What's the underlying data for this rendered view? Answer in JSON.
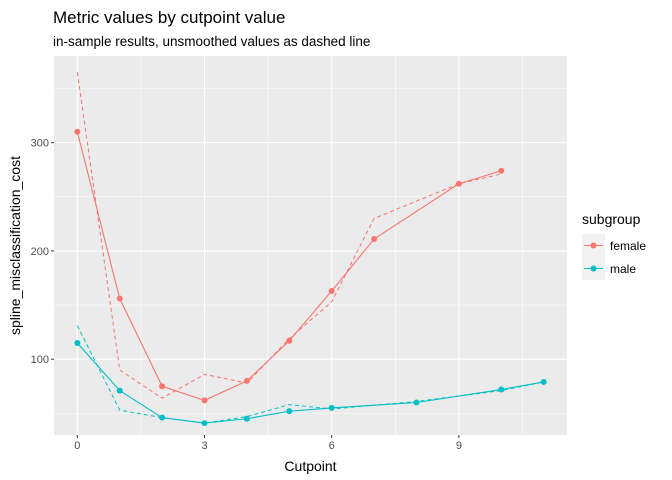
{
  "chart_data": {
    "type": "line",
    "title": "Metric values by cutpoint value",
    "subtitle": "in-sample results, unsmoothed values as dashed line",
    "xlabel": "Cutpoint",
    "ylabel": "spline_misclassification_cost",
    "xlim": [
      -0.55,
      11.55
    ],
    "ylim": [
      30,
      380
    ],
    "x_ticks": [
      0,
      3,
      6,
      9
    ],
    "y_ticks": [
      100,
      200,
      300
    ],
    "grid": true,
    "legend": {
      "title": "subgroup",
      "placement": "right"
    },
    "series": [
      {
        "name": "female",
        "color": "#F8766D",
        "smoothed": {
          "x": [
            0,
            1,
            2,
            3,
            4,
            5,
            6,
            7,
            9,
            10
          ],
          "y": [
            310,
            156,
            75,
            62,
            80,
            117,
            163,
            211,
            262,
            274
          ]
        },
        "unsmoothed": {
          "x": [
            0,
            1,
            2,
            3,
            4,
            5,
            6,
            7,
            9,
            10
          ],
          "y": [
            365,
            90,
            64,
            86,
            78,
            119,
            153,
            230,
            262,
            271
          ]
        }
      },
      {
        "name": "male",
        "color": "#00BFC4",
        "smoothed": {
          "x": [
            0,
            1,
            2,
            3,
            4,
            5,
            6,
            8,
            10,
            11
          ],
          "y": [
            115,
            71,
            46,
            41,
            45,
            52,
            55,
            60,
            72,
            79
          ]
        },
        "unsmoothed": {
          "x": [
            0,
            1,
            2,
            3,
            4,
            5,
            6,
            8,
            10,
            11
          ],
          "y": [
            131,
            53,
            46,
            41,
            47,
            58,
            54,
            61,
            71,
            79
          ]
        }
      }
    ]
  }
}
